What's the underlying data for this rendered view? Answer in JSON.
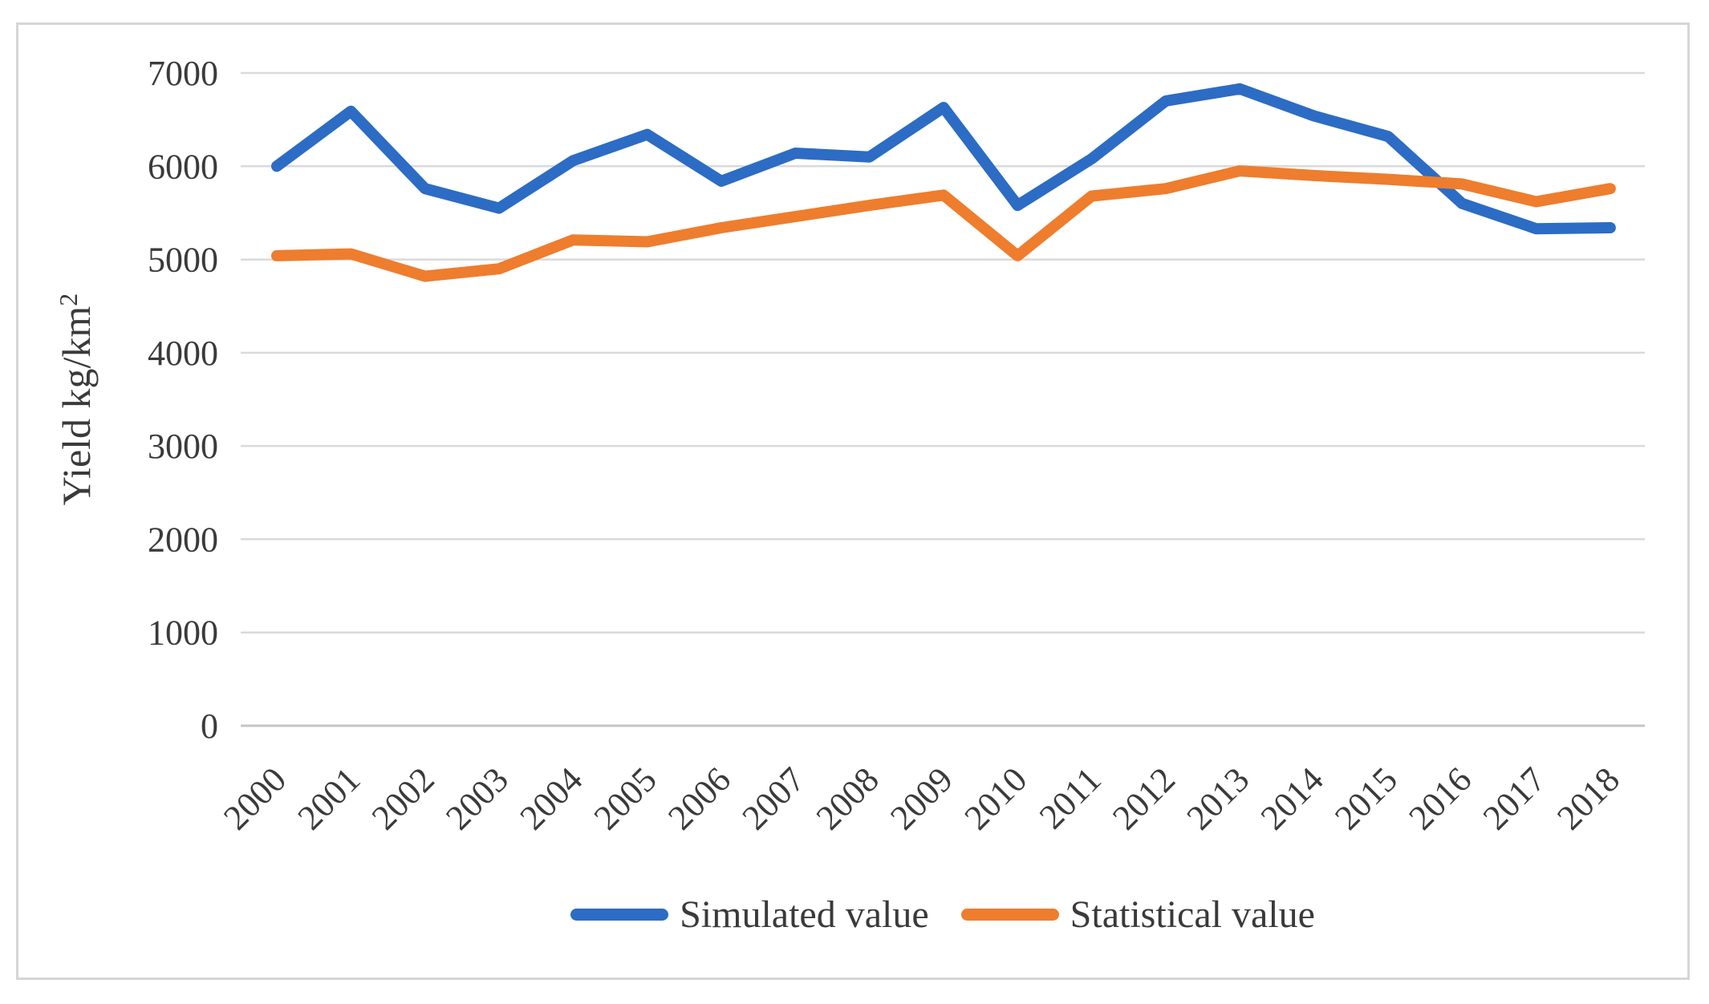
{
  "figure": {
    "border_color": "#d6d6d6",
    "background_color": "#ffffff",
    "text_color": "#3a3a3a",
    "gridline_color": "#dadada",
    "axisline_color": "#c4c4c4"
  },
  "chart_data": {
    "type": "line",
    "title": "",
    "xlabel": "",
    "ylabel": "Yield kg/km²",
    "ylim": [
      0,
      7000
    ],
    "yticks": [
      0,
      1000,
      2000,
      3000,
      4000,
      5000,
      6000,
      7000
    ],
    "grid": "horizontal",
    "legend_position": "bottom-center",
    "x_tick_rotation": -45,
    "categories": [
      "2000",
      "2001",
      "2002",
      "2003",
      "2004",
      "2005",
      "2006",
      "2007",
      "2008",
      "2009",
      "2010",
      "2011",
      "2012",
      "2013",
      "2014",
      "2015",
      "2016",
      "2017",
      "2018"
    ],
    "series": [
      {
        "name": "Simulated value",
        "color": "#2c6cc4",
        "values": [
          6000,
          6590,
          5760,
          5550,
          6060,
          6340,
          5840,
          6140,
          6100,
          6630,
          5580,
          6080,
          6700,
          6830,
          6540,
          6320,
          5600,
          5330,
          5340
        ]
      },
      {
        "name": "Statistical value",
        "color": "#ee7d2e",
        "values": [
          5040,
          5060,
          4820,
          4900,
          5210,
          5190,
          5340,
          5460,
          5580,
          5690,
          5040,
          5680,
          5760,
          5950,
          5900,
          5860,
          5810,
          5620,
          5760
        ]
      }
    ]
  }
}
